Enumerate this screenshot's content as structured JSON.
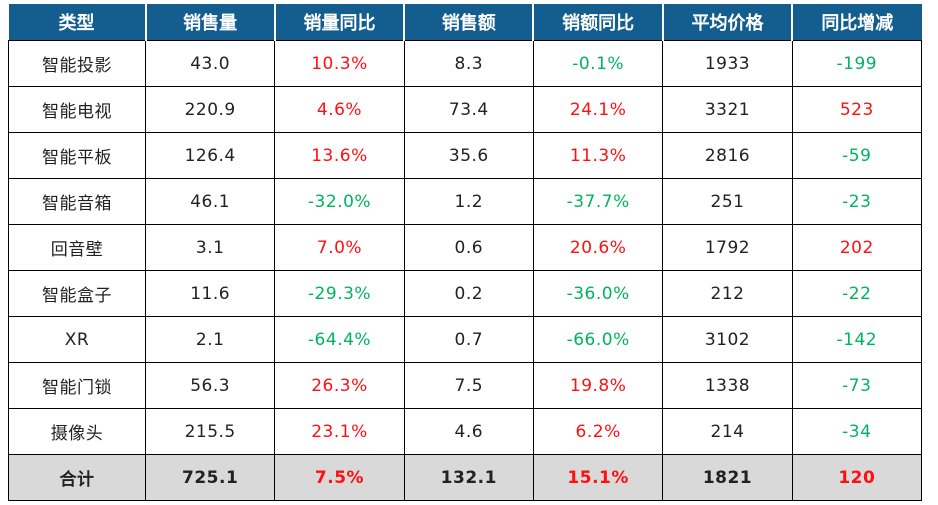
{
  "colors": {
    "header_bg": "#135e8e",
    "header_text": "#ffffff",
    "positive_red": "#ff0f0f",
    "negative_green": "#00b45f",
    "total_row_bg": "#d9d9d9",
    "border": "#000000",
    "body_text": "#222222"
  },
  "chart_data": {
    "type": "table",
    "title": "",
    "columns": [
      {
        "key": "category",
        "label": "类型"
      },
      {
        "key": "sales-volume",
        "label": "销售量"
      },
      {
        "key": "volume-yoy",
        "label": "销量同比"
      },
      {
        "key": "sales-amount",
        "label": "销售额"
      },
      {
        "key": "amount-yoy",
        "label": "销额同比"
      },
      {
        "key": "average-price",
        "label": "平均价格"
      },
      {
        "key": "yoy-price-change",
        "label": "同比增减"
      }
    ],
    "colored_columns": [
      2,
      4,
      6
    ],
    "rows": [
      {
        "cells": [
          "智能投影",
          "43.0",
          "10.3%",
          "8.3",
          "-0.1%",
          "1933",
          "-199"
        ]
      },
      {
        "cells": [
          "智能电视",
          "220.9",
          "4.6%",
          "73.4",
          "24.1%",
          "3321",
          "523"
        ]
      },
      {
        "cells": [
          "智能平板",
          "126.4",
          "13.6%",
          "35.6",
          "11.3%",
          "2816",
          "-59"
        ]
      },
      {
        "cells": [
          "智能音箱",
          "46.1",
          "-32.0%",
          "1.2",
          "-37.7%",
          "251",
          "-23"
        ]
      },
      {
        "cells": [
          "回音壁",
          "3.1",
          "7.0%",
          "0.6",
          "20.6%",
          "1792",
          "202"
        ]
      },
      {
        "cells": [
          "智能盒子",
          "11.6",
          "-29.3%",
          "0.2",
          "-36.0%",
          "212",
          "-22"
        ]
      },
      {
        "cells": [
          "XR",
          "2.1",
          "-64.4%",
          "0.7",
          "-66.0%",
          "3102",
          "-142"
        ]
      },
      {
        "cells": [
          "智能门锁",
          "56.3",
          "26.3%",
          "7.5",
          "19.8%",
          "1338",
          "-73"
        ]
      },
      {
        "cells": [
          "摄像头",
          "215.5",
          "23.1%",
          "4.6",
          "6.2%",
          "214",
          "-34"
        ]
      },
      {
        "cells": [
          "合计",
          "725.1",
          "7.5%",
          "132.1",
          "15.1%",
          "1821",
          "120"
        ],
        "is_total": true
      }
    ]
  }
}
